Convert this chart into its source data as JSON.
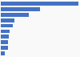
{
  "values": [
    1898,
    950,
    680,
    340,
    290,
    210,
    190,
    180,
    170,
    100
  ],
  "bar_color": "#4472C4",
  "background_color": "#f9f9f9",
  "figsize": [
    1.0,
    0.71
  ],
  "dpi": 100
}
